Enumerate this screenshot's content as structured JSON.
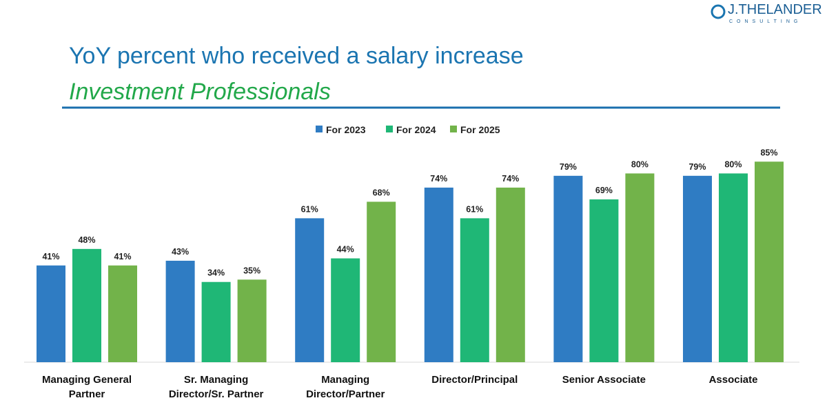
{
  "logo": {
    "name": "J.THELANDER",
    "tagline": "CONSULTING"
  },
  "chart_data": {
    "type": "bar",
    "title": "YoY percent who received a salary increase",
    "subtitle": "Investment Professionals",
    "categories": [
      "Managing General Partner",
      "Sr. Managing Director/Sr. Partner",
      "Managing Director/Partner",
      "Director/Principal",
      "Senior Associate",
      "Associate"
    ],
    "series": [
      {
        "name": "For 2023",
        "color": "#2f7cc3",
        "values": [
          41,
          43,
          61,
          74,
          79,
          79
        ],
        "value_labels": [
          "41%",
          "43%",
          "61%",
          "74%",
          "79%",
          "79%"
        ]
      },
      {
        "name": "For 2024",
        "color": "#1fb776",
        "values": [
          48,
          34,
          44,
          61,
          69,
          80
        ],
        "value_labels": [
          "48%",
          "34%",
          "44%",
          "61%",
          "69%",
          "80%"
        ]
      },
      {
        "name": "For 2025",
        "color": "#72b34a",
        "values": [
          41,
          35,
          68,
          74,
          80,
          85
        ],
        "value_labels": [
          "41%",
          "35%",
          "68%",
          "74%",
          "80%",
          "85%"
        ]
      }
    ],
    "legend": "top"
  }
}
